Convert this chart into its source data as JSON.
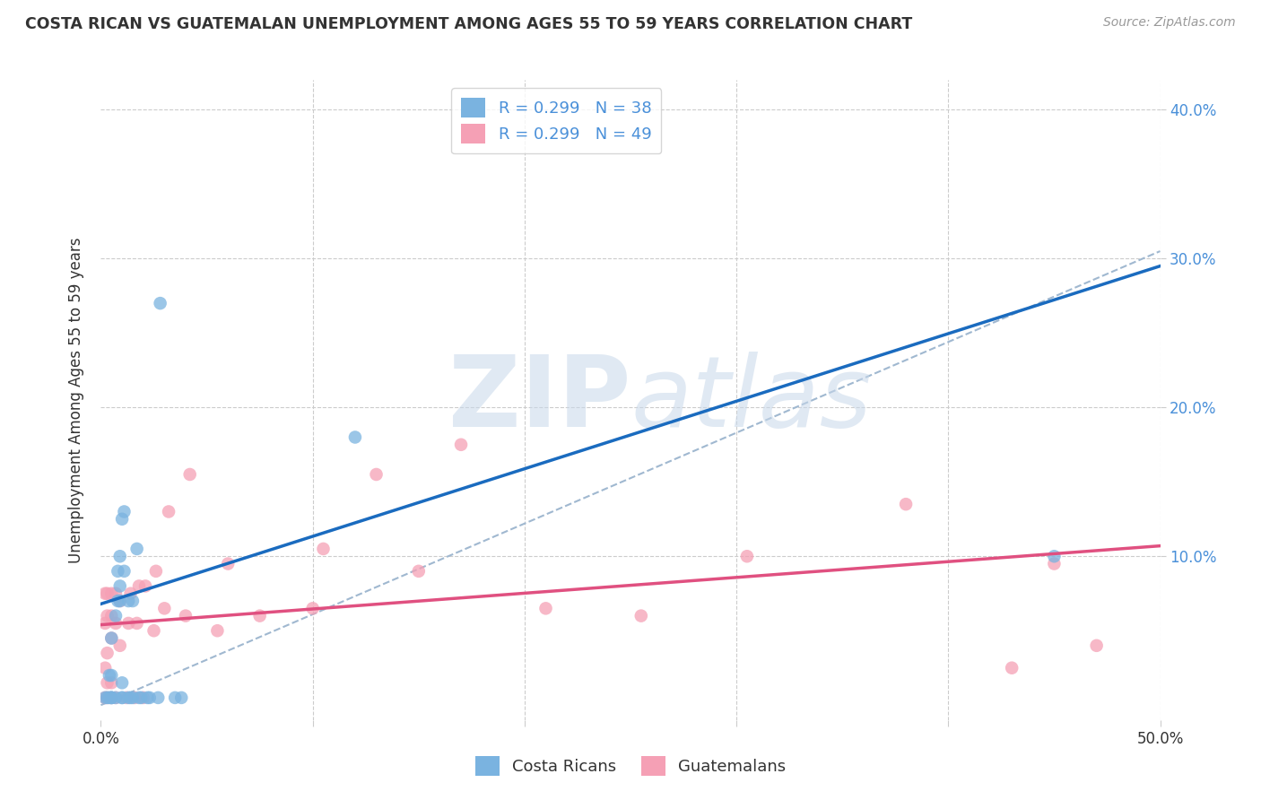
{
  "title": "COSTA RICAN VS GUATEMALAN UNEMPLOYMENT AMONG AGES 55 TO 59 YEARS CORRELATION CHART",
  "source": "Source: ZipAtlas.com",
  "ylabel": "Unemployment Among Ages 55 to 59 years",
  "xlim": [
    0.0,
    0.5
  ],
  "ylim": [
    -0.01,
    0.42
  ],
  "grid_color": "#cccccc",
  "background_color": "#ffffff",
  "costa_rica_color": "#7ab3e0",
  "guatemala_color": "#f5a0b5",
  "costa_rica_line_color": "#1a6bbf",
  "guatemala_line_color": "#e05080",
  "ref_line_color": "#a0b8d0",
  "watermark": "ZIPAtlas",
  "cr_line_x0": 0.0,
  "cr_line_y0": 0.068,
  "cr_line_x1": 0.5,
  "cr_line_y1": 0.295,
  "gt_line_x0": 0.0,
  "gt_line_y0": 0.054,
  "gt_line_x1": 0.5,
  "gt_line_y1": 0.107,
  "ref_line_x0": 0.0,
  "ref_line_y0": 0.0,
  "ref_line_x1": 0.5,
  "ref_line_y1": 0.305,
  "costa_rica_x": [
    0.002,
    0.003,
    0.004,
    0.004,
    0.005,
    0.005,
    0.005,
    0.005,
    0.005,
    0.007,
    0.007,
    0.008,
    0.008,
    0.009,
    0.009,
    0.009,
    0.01,
    0.01,
    0.01,
    0.01,
    0.011,
    0.011,
    0.013,
    0.013,
    0.014,
    0.015,
    0.015,
    0.017,
    0.018,
    0.019,
    0.022,
    0.023,
    0.027,
    0.028,
    0.035,
    0.038,
    0.12,
    0.45
  ],
  "costa_rica_y": [
    0.005,
    0.005,
    0.005,
    0.02,
    0.005,
    0.005,
    0.005,
    0.02,
    0.045,
    0.005,
    0.06,
    0.07,
    0.09,
    0.07,
    0.08,
    0.1,
    0.005,
    0.005,
    0.015,
    0.125,
    0.09,
    0.13,
    0.005,
    0.07,
    0.005,
    0.005,
    0.07,
    0.105,
    0.005,
    0.005,
    0.005,
    0.005,
    0.005,
    0.27,
    0.005,
    0.005,
    0.18,
    0.1
  ],
  "guatemala_x": [
    0.002,
    0.002,
    0.002,
    0.002,
    0.003,
    0.003,
    0.003,
    0.003,
    0.003,
    0.005,
    0.005,
    0.005,
    0.005,
    0.005,
    0.007,
    0.007,
    0.007,
    0.009,
    0.009,
    0.012,
    0.013,
    0.014,
    0.016,
    0.017,
    0.018,
    0.02,
    0.021,
    0.025,
    0.026,
    0.03,
    0.032,
    0.04,
    0.042,
    0.055,
    0.06,
    0.075,
    0.1,
    0.105,
    0.13,
    0.15,
    0.17,
    0.21,
    0.255,
    0.305,
    0.38,
    0.43,
    0.45,
    0.47
  ],
  "guatemala_y": [
    0.005,
    0.025,
    0.055,
    0.075,
    0.005,
    0.015,
    0.035,
    0.06,
    0.075,
    0.005,
    0.015,
    0.045,
    0.06,
    0.075,
    0.005,
    0.055,
    0.075,
    0.04,
    0.07,
    0.005,
    0.055,
    0.075,
    0.005,
    0.055,
    0.08,
    0.005,
    0.08,
    0.05,
    0.09,
    0.065,
    0.13,
    0.06,
    0.155,
    0.05,
    0.095,
    0.06,
    0.065,
    0.105,
    0.155,
    0.09,
    0.175,
    0.065,
    0.06,
    0.1,
    0.135,
    0.025,
    0.095,
    0.04
  ]
}
